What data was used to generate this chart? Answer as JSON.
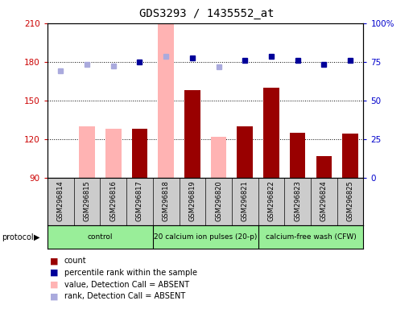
{
  "title": "GDS3293 / 1435552_at",
  "samples": [
    "GSM296814",
    "GSM296815",
    "GSM296816",
    "GSM296817",
    "GSM296818",
    "GSM296819",
    "GSM296820",
    "GSM296821",
    "GSM296822",
    "GSM296823",
    "GSM296824",
    "GSM296825"
  ],
  "bar_values": [
    90,
    130,
    128,
    128,
    210,
    158,
    122,
    130,
    160,
    125,
    107,
    124
  ],
  "bar_absent": [
    true,
    true,
    true,
    false,
    true,
    false,
    true,
    false,
    false,
    false,
    false,
    false
  ],
  "percentile_values": [
    173,
    178,
    177,
    180,
    184,
    183,
    176,
    181,
    184,
    181,
    178,
    181
  ],
  "percentile_absent": [
    true,
    true,
    true,
    false,
    true,
    false,
    true,
    false,
    false,
    false,
    false,
    false
  ],
  "ylim_left": [
    90,
    210
  ],
  "yticks_left": [
    90,
    120,
    150,
    180,
    210
  ],
  "ytick_labels_right": [
    "0",
    "25",
    "50",
    "75",
    "100%"
  ],
  "color_dark_red": "#990000",
  "color_pink": "#FFB3B3",
  "color_dark_blue": "#000099",
  "color_light_blue": "#AAAADD",
  "axis_color_left": "#CC0000",
  "axis_color_right": "#0000CC",
  "bg_color": "#FFFFFF",
  "gray_bg": "#CCCCCC",
  "green_bg": "#99EE99",
  "protocol_groups": [
    {
      "label": "control",
      "start": 0,
      "end": 4
    },
    {
      "label": "20 calcium ion pulses (20-p)",
      "start": 4,
      "end": 8
    },
    {
      "label": "calcium-free wash (CFW)",
      "start": 8,
      "end": 12
    }
  ]
}
